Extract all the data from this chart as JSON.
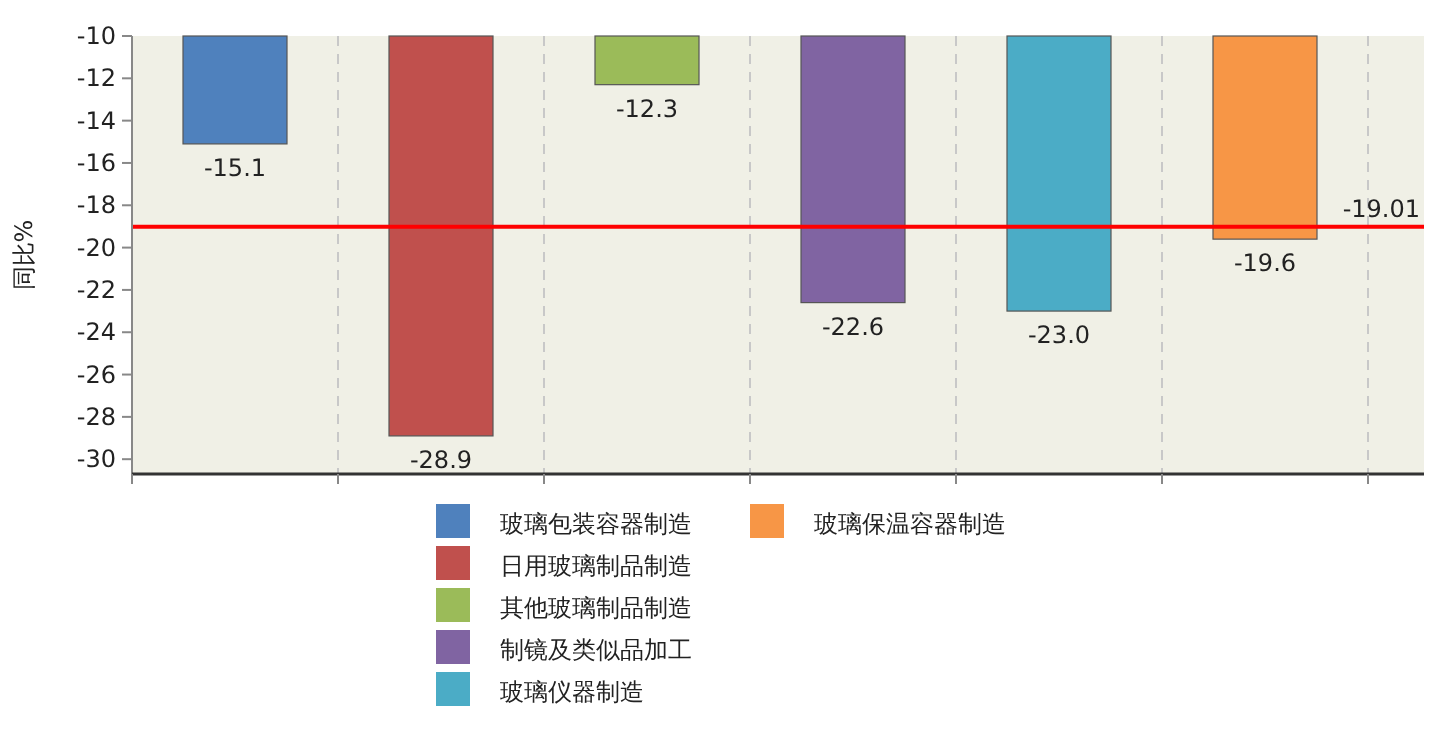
{
  "chart_data": {
    "type": "bar",
    "ylabel": "同比%",
    "categories": [
      null,
      null,
      null,
      null,
      null,
      null
    ],
    "series": [
      {
        "name": "玻璃包装容器制造",
        "color": "#4f81bd",
        "values": [
          -15.1,
          null,
          null,
          null,
          null,
          null
        ],
        "value_labels": [
          "-15.1",
          null,
          null,
          null,
          null,
          null
        ]
      },
      {
        "name": "日用玻璃制品制造",
        "color": "#c0504d",
        "values": [
          null,
          -28.9,
          null,
          null,
          null,
          null
        ],
        "value_labels": [
          null,
          "-28.9",
          null,
          null,
          null,
          null
        ]
      },
      {
        "name": "其他玻璃制品制造",
        "color": "#9bbb59",
        "values": [
          null,
          null,
          -12.3,
          null,
          null,
          null
        ],
        "value_labels": [
          null,
          null,
          "-12.3",
          null,
          null,
          null
        ]
      },
      {
        "name": "制镜及类似品加工",
        "color": "#8064a2",
        "values": [
          null,
          null,
          null,
          -22.6,
          null,
          null
        ],
        "value_labels": [
          null,
          null,
          null,
          "-22.6",
          null,
          null
        ]
      },
      {
        "name": "玻璃仪器制造",
        "color": "#4bacc6",
        "values": [
          null,
          null,
          null,
          null,
          -23.0,
          null
        ],
        "value_labels": [
          null,
          null,
          null,
          null,
          "-23.0",
          null
        ]
      },
      {
        "name": "玻璃保温容器制造",
        "color": "#f79646",
        "values": [
          null,
          null,
          null,
          null,
          null,
          -19.6
        ],
        "value_labels": [
          null,
          null,
          null,
          null,
          null,
          "-19.6"
        ]
      }
    ],
    "ylim": [
      -30.7,
      -10
    ],
    "yticks": [
      -10,
      -12,
      -14,
      -16,
      -18,
      -20,
      -22,
      -24,
      -26,
      -28,
      -30
    ],
    "ref_lines": [
      {
        "axis": "y",
        "value": -19.01,
        "label": "-19.01",
        "color": "#ff0000"
      }
    ],
    "grid": "x",
    "legend": "bottom"
  }
}
